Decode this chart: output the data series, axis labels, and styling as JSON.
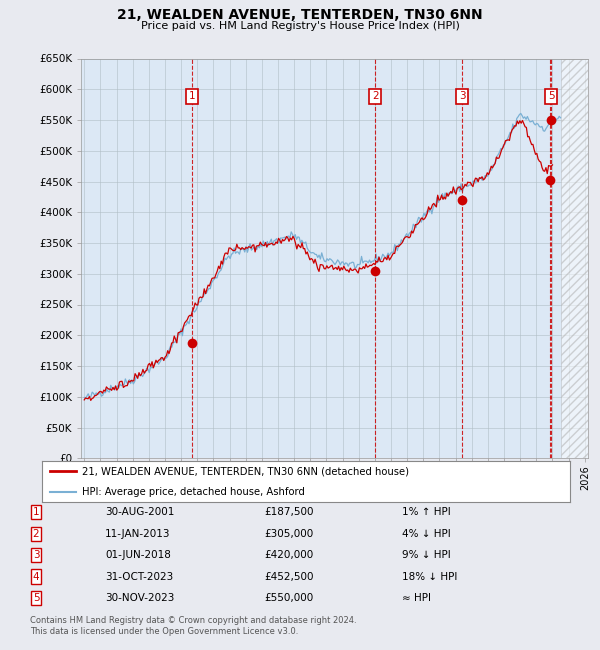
{
  "title": "21, WEALDEN AVENUE, TENTERDEN, TN30 6NN",
  "subtitle": "Price paid vs. HM Land Registry's House Price Index (HPI)",
  "ylim": [
    0,
    650000
  ],
  "yticks": [
    0,
    50000,
    100000,
    150000,
    200000,
    250000,
    300000,
    350000,
    400000,
    450000,
    500000,
    550000,
    600000,
    650000
  ],
  "ytick_labels": [
    "£0",
    "£50K",
    "£100K",
    "£150K",
    "£200K",
    "£250K",
    "£300K",
    "£350K",
    "£400K",
    "£450K",
    "£500K",
    "£550K",
    "£600K",
    "£650K"
  ],
  "xlim_start": 1994.8,
  "xlim_end": 2026.2,
  "background_color": "#e8eaf0",
  "plot_bg_color": "#dce8f5",
  "grid_color": "#b0bec5",
  "red_line_color": "#cc0000",
  "blue_line_color": "#7ab0d4",
  "sale_points": [
    {
      "label": "1",
      "date_decimal": 2001.66,
      "price": 187500,
      "show_box": true
    },
    {
      "label": "2",
      "date_decimal": 2013.03,
      "price": 305000,
      "show_box": true
    },
    {
      "label": "3",
      "date_decimal": 2018.41,
      "price": 420000,
      "show_box": true
    },
    {
      "label": "4",
      "date_decimal": 2023.83,
      "price": 452500,
      "show_box": false
    },
    {
      "label": "5",
      "date_decimal": 2023.91,
      "price": 550000,
      "show_box": true
    }
  ],
  "legend_entries": [
    {
      "label": "21, WEALDEN AVENUE, TENTERDEN, TN30 6NN (detached house)",
      "color": "#cc0000",
      "lw": 2
    },
    {
      "label": "HPI: Average price, detached house, Ashford",
      "color": "#7ab0d4",
      "lw": 1.5
    }
  ],
  "table_rows": [
    {
      "num": "1",
      "date": "30-AUG-2001",
      "price": "£187,500",
      "rel": "1% ↑ HPI"
    },
    {
      "num": "2",
      "date": "11-JAN-2013",
      "price": "£305,000",
      "rel": "4% ↓ HPI"
    },
    {
      "num": "3",
      "date": "01-JUN-2018",
      "price": "£420,000",
      "rel": "9% ↓ HPI"
    },
    {
      "num": "4",
      "date": "31-OCT-2023",
      "price": "£452,500",
      "rel": "18% ↓ HPI"
    },
    {
      "num": "5",
      "date": "30-NOV-2023",
      "price": "£550,000",
      "rel": "≈ HPI"
    }
  ],
  "footnote": "Contains HM Land Registry data © Crown copyright and database right 2024.\nThis data is licensed under the Open Government Licence v3.0.",
  "hatched_region_start": 2024.5,
  "hatched_region_end": 2026.2
}
